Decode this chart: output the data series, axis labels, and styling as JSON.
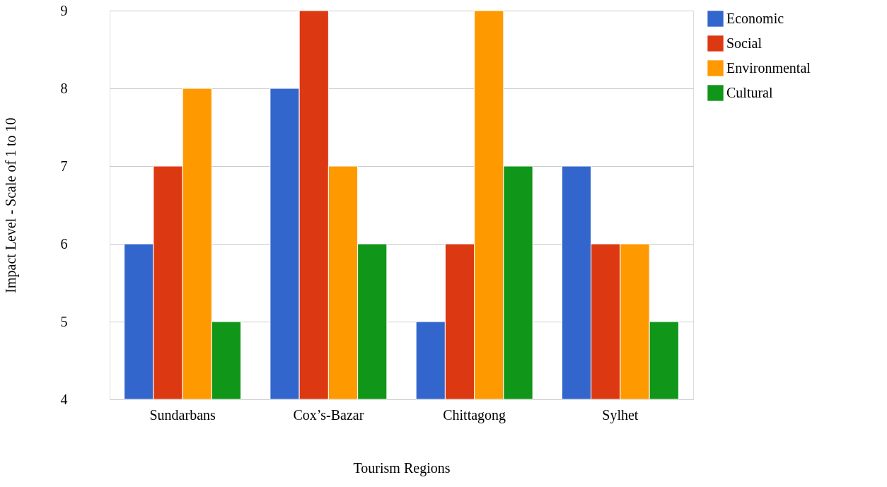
{
  "chart_data": {
    "type": "bar",
    "xlabel": "Tourism Regions",
    "ylabel": "Impact Level - Scale of 1 to 10",
    "categories": [
      "Sundarbans",
      "Cox’s-Bazar",
      "Chittagong",
      "Sylhet"
    ],
    "series": [
      {
        "name": "Economic",
        "color": "#3366cc",
        "values": [
          6,
          8,
          5,
          7
        ]
      },
      {
        "name": "Social",
        "color": "#dc3912",
        "values": [
          7,
          9,
          6,
          6
        ]
      },
      {
        "name": "Environmental",
        "color": "#ff9900",
        "values": [
          8,
          7,
          9,
          6
        ]
      },
      {
        "name": "Cultural",
        "color": "#109618",
        "values": [
          5,
          6,
          7,
          5
        ]
      }
    ],
    "ylim": [
      4,
      9
    ],
    "yticks": [
      4,
      5,
      6,
      7,
      8,
      9
    ],
    "grid": "y",
    "legend": "top right"
  }
}
